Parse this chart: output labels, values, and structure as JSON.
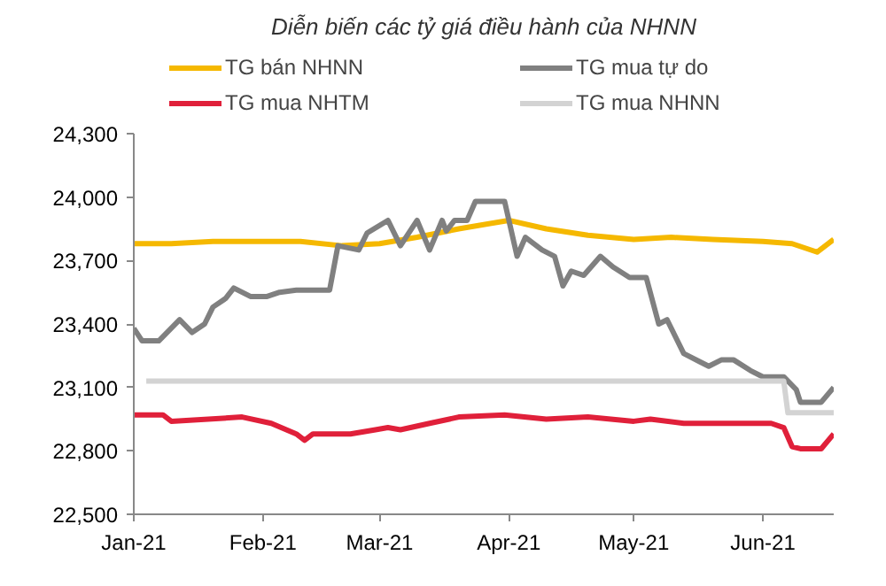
{
  "chart_data": {
    "type": "line",
    "title": "Diễn biến các tỷ giá điều hành của NHNN",
    "xlim": [
      "2021-01-01",
      "2021-06-18"
    ],
    "xticks": [
      {
        "value": "2021-01-01",
        "label": "Jan-21"
      },
      {
        "value": "2021-02-01",
        "label": "Feb-21"
      },
      {
        "value": "2021-03-01",
        "label": "Mar-21"
      },
      {
        "value": "2021-04-01",
        "label": "Apr-21"
      },
      {
        "value": "2021-05-01",
        "label": "May-21"
      },
      {
        "value": "2021-06-01",
        "label": "Jun-21"
      }
    ],
    "ylim": [
      22500,
      24300
    ],
    "yticks": [
      {
        "value": 22500,
        "label": "22,500"
      },
      {
        "value": 22800,
        "label": "22,800"
      },
      {
        "value": 23100,
        "label": "23,100"
      },
      {
        "value": 23400,
        "label": "23,400"
      },
      {
        "value": 23700,
        "label": "23,700"
      },
      {
        "value": 24000,
        "label": "24,000"
      },
      {
        "value": 24300,
        "label": "24,300"
      }
    ],
    "grid": false,
    "legend": "top",
    "marker": "none",
    "line_style": "solid",
    "series": [
      {
        "name": "TG bán NHNN",
        "color": "#f5b800",
        "x": [
          "2021-01-01",
          "2021-01-10",
          "2021-01-20",
          "2021-02-01",
          "2021-02-10",
          "2021-02-20",
          "2021-03-01",
          "2021-03-10",
          "2021-03-20",
          "2021-04-01",
          "2021-04-10",
          "2021-04-20",
          "2021-05-01",
          "2021-05-10",
          "2021-05-20",
          "2021-06-01",
          "2021-06-08",
          "2021-06-14",
          "2021-06-18"
        ],
        "values": [
          23780,
          23780,
          23790,
          23790,
          23790,
          23770,
          23780,
          23810,
          23850,
          23890,
          23850,
          23820,
          23800,
          23810,
          23800,
          23790,
          23780,
          23740,
          23800
        ]
      },
      {
        "name": "TG mua tự do",
        "color": "#808080",
        "x": [
          "2021-01-01",
          "2021-01-03",
          "2021-01-07",
          "2021-01-12",
          "2021-01-15",
          "2021-01-18",
          "2021-01-20",
          "2021-01-23",
          "2021-01-25",
          "2021-01-29",
          "2021-02-02",
          "2021-02-05",
          "2021-02-09",
          "2021-02-17",
          "2021-02-19",
          "2021-02-24",
          "2021-02-26",
          "2021-03-03",
          "2021-03-06",
          "2021-03-10",
          "2021-03-13",
          "2021-03-16",
          "2021-03-17",
          "2021-03-19",
          "2021-03-22",
          "2021-03-24",
          "2021-03-31",
          "2021-04-03",
          "2021-04-05",
          "2021-04-09",
          "2021-04-12",
          "2021-04-14",
          "2021-04-16",
          "2021-04-19",
          "2021-04-23",
          "2021-04-26",
          "2021-04-30",
          "2021-05-04",
          "2021-05-07",
          "2021-05-09",
          "2021-05-13",
          "2021-05-17",
          "2021-05-19",
          "2021-05-22",
          "2021-05-25",
          "2021-05-29",
          "2021-06-01",
          "2021-06-03",
          "2021-06-06",
          "2021-06-09",
          "2021-06-10",
          "2021-06-15",
          "2021-06-18"
        ],
        "values": [
          23380,
          23320,
          23320,
          23420,
          23360,
          23400,
          23480,
          23520,
          23570,
          23530,
          23530,
          23550,
          23560,
          23560,
          23770,
          23750,
          23830,
          23890,
          23770,
          23890,
          23750,
          23890,
          23840,
          23890,
          23890,
          23980,
          23980,
          23720,
          23810,
          23750,
          23720,
          23580,
          23650,
          23630,
          23720,
          23670,
          23620,
          23620,
          23400,
          23420,
          23260,
          23220,
          23200,
          23230,
          23230,
          23180,
          23150,
          23150,
          23150,
          23090,
          23030,
          23030,
          23100
        ]
      },
      {
        "name": "TG mua NHTM",
        "color": "#e0203a",
        "x": [
          "2021-01-01",
          "2021-01-08",
          "2021-01-10",
          "2021-01-27",
          "2021-02-03",
          "2021-02-09",
          "2021-02-11",
          "2021-02-13",
          "2021-02-22",
          "2021-02-28",
          "2021-03-03",
          "2021-03-06",
          "2021-03-13",
          "2021-03-20",
          "2021-03-31",
          "2021-04-10",
          "2021-04-20",
          "2021-05-01",
          "2021-05-05",
          "2021-05-13",
          "2021-05-25",
          "2021-06-03",
          "2021-06-06",
          "2021-06-08",
          "2021-06-10",
          "2021-06-15",
          "2021-06-18"
        ],
        "values": [
          22970,
          22970,
          22940,
          22960,
          22930,
          22880,
          22850,
          22880,
          22880,
          22900,
          22910,
          22900,
          22930,
          22960,
          22970,
          22950,
          22960,
          22940,
          22950,
          22930,
          22930,
          22930,
          22910,
          22820,
          22810,
          22810,
          22880
        ]
      },
      {
        "name": "TG mua NHNN",
        "color": "#d3d3d3",
        "x": [
          "2021-01-04",
          "2021-06-06",
          "2021-06-07",
          "2021-06-18"
        ],
        "values": [
          23130,
          23130,
          22980,
          22980
        ]
      }
    ]
  }
}
